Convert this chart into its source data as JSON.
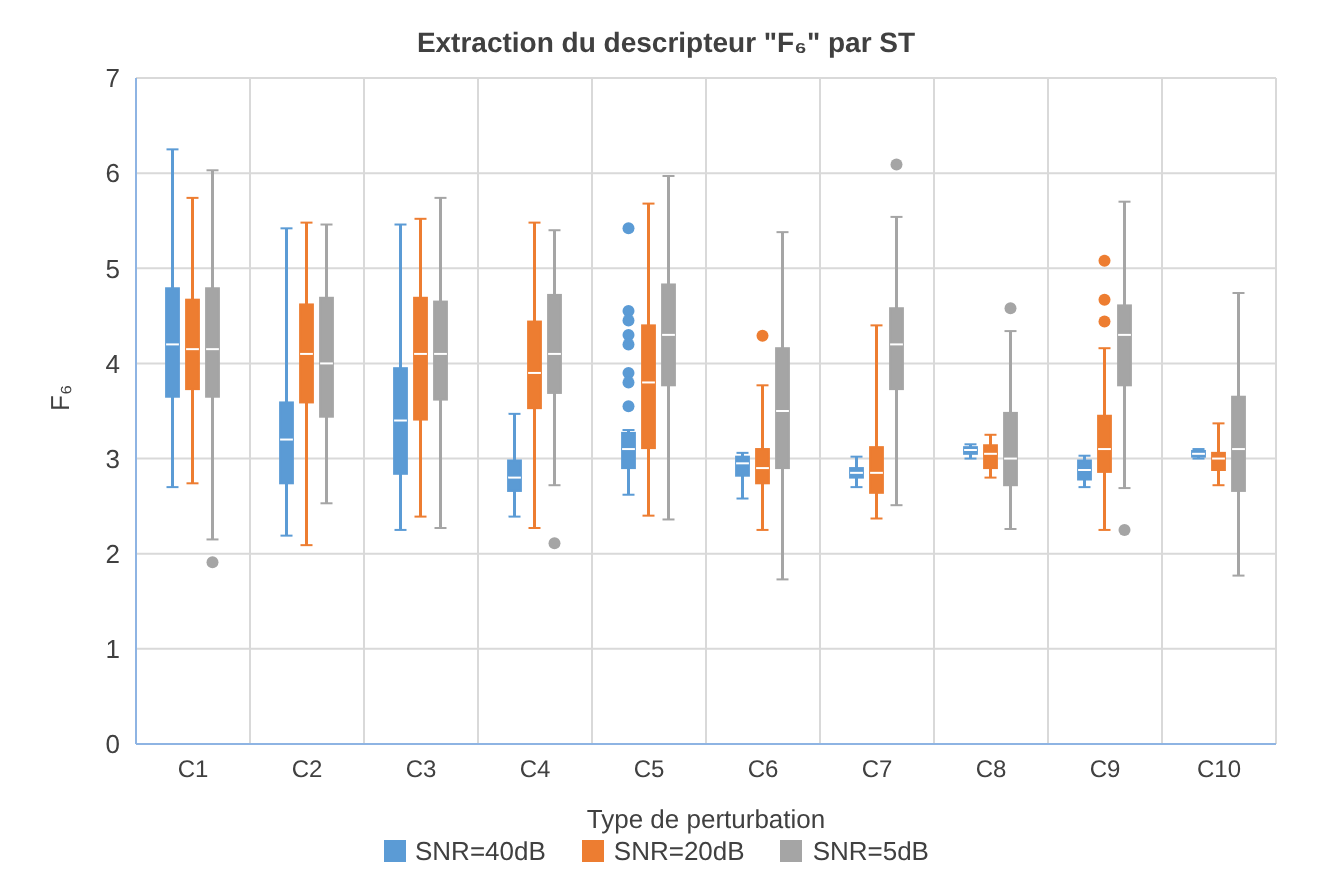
{
  "chart_data": {
    "type": "box",
    "title": "Extraction du descripteur \"F₆\" par ST",
    "xlabel": "Type de perturbation",
    "ylabel": "F₆",
    "categories": [
      "C1",
      "C2",
      "C3",
      "C4",
      "C5",
      "C6",
      "C7",
      "C8",
      "C9",
      "C10"
    ],
    "ylim": [
      0,
      7
    ],
    "yticks": [
      0,
      1,
      2,
      3,
      4,
      5,
      6,
      7
    ],
    "grid": true,
    "legend": "bottom",
    "series": [
      {
        "name": "SNR=40dB",
        "color": "#5b9bd5",
        "boxes": [
          {
            "low": 2.7,
            "q1": 3.65,
            "median": 4.2,
            "q3": 4.79,
            "high": 6.25
          },
          {
            "low": 2.19,
            "q1": 2.74,
            "median": 3.2,
            "q3": 3.59,
            "high": 5.42
          },
          {
            "low": 2.25,
            "q1": 2.84,
            "median": 3.4,
            "q3": 3.95,
            "high": 5.46
          },
          {
            "low": 2.39,
            "q1": 2.66,
            "median": 2.8,
            "q3": 2.98,
            "high": 3.47
          },
          {
            "low": 2.62,
            "q1": 2.9,
            "median": 3.1,
            "q3": 3.27,
            "high": 3.3,
            "outliers": [
              5.42,
              4.55,
              4.45,
              4.3,
              4.2,
              3.9,
              3.8,
              3.55
            ]
          },
          {
            "low": 2.58,
            "q1": 2.82,
            "median": 2.95,
            "q3": 3.02,
            "high": 3.06
          },
          {
            "low": 2.7,
            "q1": 2.8,
            "median": 2.85,
            "q3": 2.9,
            "high": 3.02
          },
          {
            "low": 3.0,
            "q1": 3.05,
            "median": 3.09,
            "q3": 3.12,
            "high": 3.15
          },
          {
            "low": 2.7,
            "q1": 2.78,
            "median": 2.88,
            "q3": 2.98,
            "high": 3.03
          },
          {
            "low": 3.0,
            "q1": 3.02,
            "median": 3.05,
            "q3": 3.08,
            "high": 3.1
          }
        ]
      },
      {
        "name": "SNR=20dB",
        "color": "#ed7d31",
        "boxes": [
          {
            "low": 2.74,
            "q1": 3.73,
            "median": 4.15,
            "q3": 4.67,
            "high": 5.74
          },
          {
            "low": 2.09,
            "q1": 3.59,
            "median": 4.1,
            "q3": 4.62,
            "high": 5.48
          },
          {
            "low": 2.39,
            "q1": 3.41,
            "median": 4.1,
            "q3": 4.69,
            "high": 5.52
          },
          {
            "low": 2.27,
            "q1": 3.53,
            "median": 3.9,
            "q3": 4.44,
            "high": 5.48
          },
          {
            "low": 2.4,
            "q1": 3.11,
            "median": 3.8,
            "q3": 4.4,
            "high": 5.68
          },
          {
            "low": 2.25,
            "q1": 2.74,
            "median": 2.9,
            "q3": 3.1,
            "high": 3.77,
            "outliers": [
              4.29
            ]
          },
          {
            "low": 2.37,
            "q1": 2.64,
            "median": 2.85,
            "q3": 3.12,
            "high": 4.4
          },
          {
            "low": 2.8,
            "q1": 2.9,
            "median": 3.05,
            "q3": 3.14,
            "high": 3.25
          },
          {
            "low": 2.25,
            "q1": 2.86,
            "median": 3.1,
            "q3": 3.45,
            "high": 4.16,
            "outliers": [
              5.08,
              4.67,
              4.44
            ]
          },
          {
            "low": 2.72,
            "q1": 2.88,
            "median": 3.0,
            "q3": 3.06,
            "high": 3.37
          }
        ]
      },
      {
        "name": "SNR=5dB",
        "color": "#a5a5a5",
        "boxes": [
          {
            "low": 2.15,
            "q1": 3.65,
            "median": 4.15,
            "q3": 4.79,
            "high": 6.03,
            "outliers": [
              1.91
            ]
          },
          {
            "low": 2.53,
            "q1": 3.44,
            "median": 4.0,
            "q3": 4.69,
            "high": 5.46
          },
          {
            "low": 2.27,
            "q1": 3.62,
            "median": 4.1,
            "q3": 4.65,
            "high": 5.74
          },
          {
            "low": 2.72,
            "q1": 3.69,
            "median": 4.1,
            "q3": 4.72,
            "high": 5.4,
            "outliers": [
              2.11
            ]
          },
          {
            "low": 2.36,
            "q1": 3.77,
            "median": 4.3,
            "q3": 4.83,
            "high": 5.97
          },
          {
            "low": 1.73,
            "q1": 2.9,
            "median": 3.5,
            "q3": 4.16,
            "high": 5.38
          },
          {
            "low": 2.51,
            "q1": 3.73,
            "median": 4.2,
            "q3": 4.58,
            "high": 5.54,
            "outliers": [
              6.09
            ]
          },
          {
            "low": 2.26,
            "q1": 2.72,
            "median": 3.0,
            "q3": 3.48,
            "high": 4.34,
            "outliers": [
              4.58
            ]
          },
          {
            "low": 2.69,
            "q1": 3.77,
            "median": 4.3,
            "q3": 4.61,
            "high": 5.7,
            "outliers": [
              2.25
            ]
          },
          {
            "low": 1.77,
            "q1": 2.66,
            "median": 3.1,
            "q3": 3.65,
            "high": 4.74
          }
        ]
      }
    ]
  }
}
